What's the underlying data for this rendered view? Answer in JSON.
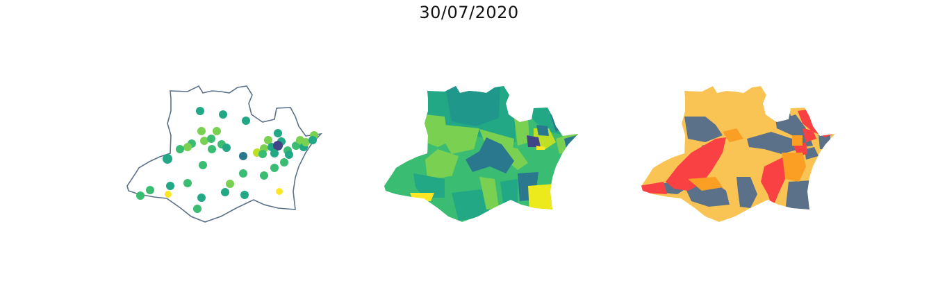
{
  "figure": {
    "title": "30/07/2020"
  },
  "maps": [
    {
      "name": "points-map",
      "kind": "outline-with-points",
      "outline_color": "#5a7189",
      "point_colors": [
        "#fde725",
        "#7ad151",
        "#22a884",
        "#2a788e",
        "#414487",
        "#440154"
      ]
    },
    {
      "name": "choropleth-viridis",
      "kind": "choropleth",
      "palette": [
        "#440154",
        "#414487",
        "#2a788e",
        "#22a884",
        "#3bbc73",
        "#7ad151",
        "#bddf26",
        "#fde725"
      ]
    },
    {
      "name": "choropleth-categories",
      "kind": "choropleth",
      "palette": [
        "#5a7189",
        "#f9c453",
        "#fa9e24",
        "#f94144"
      ]
    }
  ]
}
